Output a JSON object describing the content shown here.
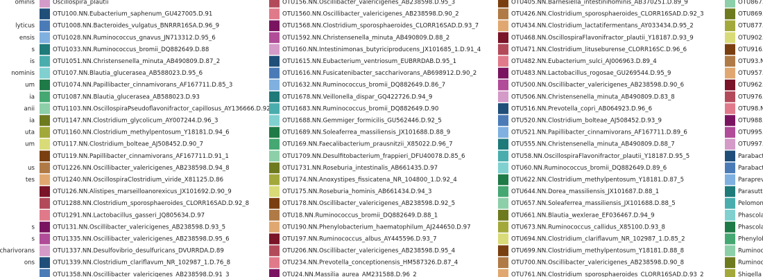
{
  "legend": {
    "columns": [
      {
        "labels": [
          "ominis",
          null,
          "lyticus",
          "ensis",
          "s",
          "is",
          "nominis",
          "um",
          "ia",
          "anii",
          "ia",
          "uta",
          "um",
          null,
          "us",
          "tes",
          null,
          null,
          null,
          "s",
          "s",
          "ccharivorans",
          "ons",
          null
        ]
      },
      {
        "labels": [
          "Oscillospira_plautii",
          "OTU100.NN.Eubacterium_saphenum_GU427005.D.91",
          "OTU1008.NN.Bacteroides_vulgatus_BNRRR16SA.D.96_9",
          "OTU1028.NN.Ruminococcus_gnavus_JN713312.D.95_6",
          "OTU1033.NN.Ruminococcus_bromii_DQ882649.D.88",
          "OTU1051.NN.Christensenella_minuta_AB490809.D.87_2",
          "OTU107.NN.Blautia_glucerasea_AB588023.D.95_6",
          "OTU1074.NN.Papillibacter_cinnamivorans_AF167711.D.85_3",
          "OTU1087.NN.Blautia_glucerasea_AB588023.D.93",
          "OTU1103.NN.OscillospiraPseudoflavonifractor_capillosus_AY136666.D.92_3",
          "OTU1147.NN.Clostridium_glycolicum_AY007244.D.96_3",
          "OTU1160.NN.Clostridium_methylpentosum_Y18181.D.94_6",
          "OTU117.NN.Clostridium_bolteae_AJ508452.D.90_7",
          "OTU119.NN.Papillibacter_cinnamivorans_AF167711.D.91_1",
          "OTU1226.NN.Oscillibacter_valericigenes_AB238598.D.94_8",
          "OTU1240.NN.OscillospiraClostridium_viride_X81125.D.86",
          "OTU126.NN.Alistipes_marseilloanorexicus_JX101692.D.90_9",
          "OTU1288.NN.Clostridium_sporosphaeroides_CLORR16SAD.D.92_8",
          "OTU1291.NN.Lactobacillus_gasseri_JQ805634.D.97",
          "OTU131.NN.Oscillibacter_valericigenes_AB238598.D.93_5",
          "OTU1335.NN.Oscillibacter_valericigenes_AB238598.D.95_6",
          "OTU1337.NN.Desulfovibrio_desulfuricans_DVURRDA.D.89",
          "OTU1339.NN.Clostridium_clariflavum_NR_102987_1.D.76_8",
          "OTU1358.NN.Oscillibacter_valericigenes_AB238598.D.91_3"
        ],
        "colors": [
          "#d49ac8",
          "#1f4e79",
          "#4a7bb7",
          "#7fb0e0",
          "#1f7a7a",
          "#4aadad",
          "#80d0d0",
          "#1e7a46",
          "#45a872",
          "#8ccfa8",
          "#6e7a1e",
          "#a3a83a",
          "#d9db78",
          "#7a3f10",
          "#b07a46",
          "#e0a870",
          "#7a1428",
          "#b34a5a",
          "#e07a8a",
          "#7a1460",
          "#b04c98",
          "#d49ac8",
          "#1f4e79",
          "#4a7bb7"
        ]
      },
      {
        "labels": [
          "OTU156.NN.Oscillibacter_valericigenes_AB238598.D.95_3",
          "OTU1560.NN.Oscillibacter_valericigenes_AB238598.D.90_2",
          "OTU1568.NN.Clostridium_sporosphaeroides_CLORR16SAD.D.93_7",
          "OTU1592.NN.Christensenella_minuta_AB490809.D.88_2",
          "OTU160.NN.Intestinimonas_butyriciproducens_JX101685_1.D.91_4",
          "OTU1615.NN.Eubacterium_ventriosum_EUBRRDAB.D.95_1",
          "OTU1616.NN.Fusicatenibacter_saccharivorans_AB698912.D.90_2",
          "OTU1632.NN.Ruminococcus_bromii_DQ882649.D.86_7",
          "OTU1678.NN.Veillonella_dispar_GQ422726.D.94_9",
          "OTU1683.NN.Ruminococcus_bromii_DQ882649.D.90",
          "OTU1688.NN.Gemmiger_formicilis_GU562446.D.92_5",
          "OTU1689.NN.Soleaferrea_massiliensis_JX101688.D.88_9",
          "OTU169.NN.Faecalibacterium_prausnitzii_X85022.D.96_7",
          "OTU1709.NN.Desulfitobacterium_frappieri_DFU40078.D.85_6",
          "OTU1731.NN.Roseburia_intestinalis_AB661435.D.97",
          "OTU174.NN.Anoxystipes_fissicatena_NR_104800_1.D.92_4",
          "OTU175.NN.Roseburia_hominis_AB661434.D.94_3",
          "OTU178.NN.Oscillibacter_valericigenes_AB238598.D.92_5",
          "OTU18.NN.Ruminococcus_bromii_DQ882649.D.88_1",
          "OTU190.NN.Phenylobacterium_haematophilum_AJ244650.D.97",
          "OTU197.NN.Ruminococcus_albus_AY445596.D.93_7",
          "OTU206.NN.Oscillibacter_valericigenes_AB238598.D.95_4",
          "OTU234.NN.Prevotella_conceptionensis_HM587326.D.87_4",
          "OTU24.NN.Massilia_aurea_AM231588.D.96_2"
        ],
        "colors": [
          "#b34a5a",
          "#e07a8a",
          "#7a1460",
          "#b04c98",
          "#d49ac8",
          "#1f4e79",
          "#4a7bb7",
          "#7fb0e0",
          "#1f7a7a",
          "#4aadad",
          "#80d0d0",
          "#1e7a46",
          "#45a872",
          "#8ccfa8",
          "#6e7a1e",
          "#a3a83a",
          "#d9db78",
          "#7a3f10",
          "#b07a46",
          "#e0a870",
          "#7a1428",
          "#b34a5a",
          "#e07a8a",
          "#7a1460"
        ]
      },
      {
        "labels": [
          "OTU405.NN.Barnesiella_intestinihominis_AB370251.D.89_9",
          "OTU426.NN.Clostridium_sporosphaeroides_CLORR16SAD.D.92_3",
          "OTU434.NN.Clostridium_lactatifermentans_AY033434.D.95_2",
          "OTU468.NN.OscillospiraFlavonifractor_plautii_Y18187.D.93_9",
          "OTU471.NN.Clostridium_lituseburense_CLORR16SC.D.96_6",
          "OTU482.NN.Eubacterium_sulci_AJ006963.D.89_4",
          "OTU483.NN.Lactobacillus_rogosae_GU269544.D.95_9",
          "OTU500.NN.Oscillibacter_valericigenes_AB238598.D.90_6",
          "OTU506.NN.Christensenella_minuta_AB490809.D.83_8",
          "OTU516.NN.Prevotella_copri_AB064923.D.96_6",
          "OTU520.NN.Clostridium_bolteae_AJ508452.D.93_9",
          "OTU521.NN.Papillibacter_cinnamivorans_AF167711.D.89_6",
          "OTU555.NN.Christensenella_minuta_AB490809.D.88_7",
          "OTU58.NN.OscillospiraFlavonifractor_plautii_Y18187.D.95_5",
          "OTU60.NN.Ruminococcus_bromii_DQ882649.D.89_6",
          "OTU622.NN.Clostridium_methylpentosum_Y18181.D.87_5",
          "OTU644.NN.Dorea_massiliensis_JX101687.D.88_1",
          "OTU657.NN.Soleaferrea_massiliensis_JX101688.D.88_5",
          "OTU661.NN.Blautia_wexlerae_EF036467.D.94_9",
          "OTU673.NN.Ruminococcus_callidus_X85100.D.93_8",
          "OTU694.NN.Clostridium_clariflavum_NR_102987_1.D.85_2",
          "OTU699.NN.Clostridium_methylpentosum_Y18181.D.88_8",
          "OTU700.NN.Oscillibacter_valericigenes_AB238598.D.90_8",
          "OTU761.NN.Clostridium_sporosphaeroides_CLORR16SAD.D.93_2"
        ],
        "colors": [
          "#7a3f10",
          "#b07a46",
          "#e0a870",
          "#7a1428",
          "#b34a5a",
          "#e07a8a",
          "#7a1460",
          "#b04c98",
          "#d49ac8",
          "#1f4e79",
          "#4a7bb7",
          "#7fb0e0",
          "#1f7a7a",
          "#4aadad",
          "#80d0d0",
          "#1e7a46",
          "#45a872",
          "#8ccfa8",
          "#6e7a1e",
          "#a3a83a",
          "#d9db78",
          "#7a3f10",
          "#b07a46",
          "#e0a870"
        ]
      },
      {
        "labels": [
          "OTU867.N",
          "OTU869.N",
          "OTU877.N",
          "OTU902.N",
          "OTU916.N",
          "OTU93.N",
          "OTU957.N",
          "OTU962.N",
          "OTU976.N",
          "OTU98.N",
          "OTU988.N",
          "OTU995.N",
          "OTU997.N",
          "Parabacte",
          "Parabacte",
          "Parapreve",
          "Parasutter",
          "Pelomona",
          "Phascolar",
          "Phascolar",
          "Phenyloba",
          "Ruminoco",
          "Ruminoco",
          "Shigella"
        ],
        "colors": [
          "#8ccfa8",
          "#6e7a1e",
          "#a3a83a",
          "#d9db78",
          "#7a3f10",
          "#b07a46",
          "#e0a870",
          "#7a1428",
          "#b34a5a",
          "#e07a8a",
          "#7a1460",
          "#b04c98",
          "#d49ac8",
          "#1f4e79",
          "#4a7bb7",
          "#7fb0e0",
          "#1f7a7a",
          "#4aadad",
          "#80d0d0",
          "#1e7a46",
          "#45a872",
          "#8ccfa8",
          "#6e7a1e",
          "#a3a83a"
        ]
      }
    ]
  }
}
